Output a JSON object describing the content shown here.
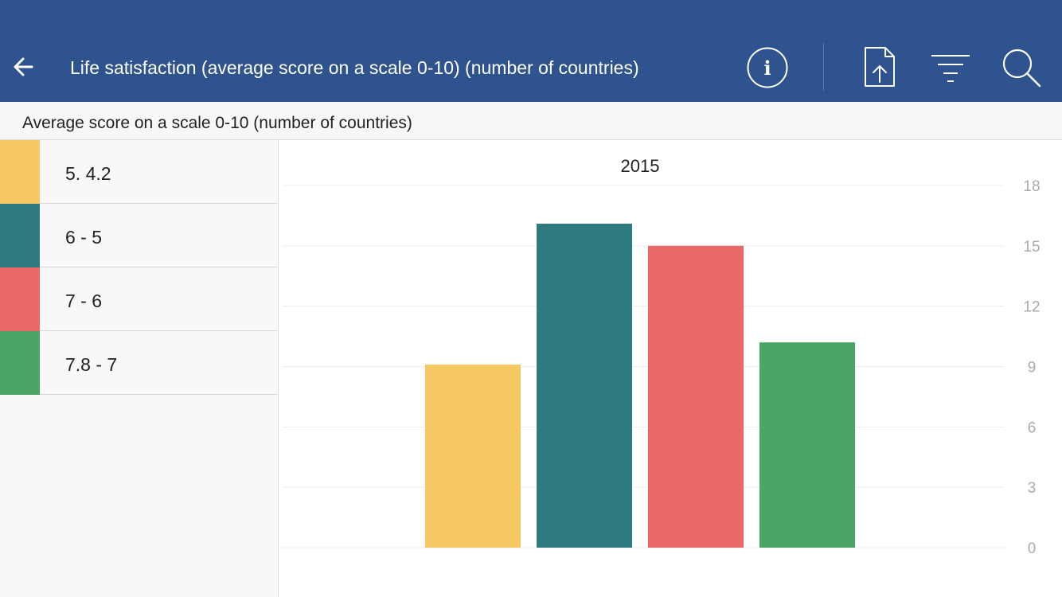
{
  "header": {
    "title": "Life satisfaction (average score on a scale 0-10) (number of countries)",
    "icons": {
      "back": "back-arrow-icon",
      "info": "info-icon",
      "export": "export-icon",
      "filter": "filter-icon",
      "search": "search-icon"
    },
    "background": "#2e538e"
  },
  "subheader": {
    "text": "Average score on a scale 0-10 (number of countries)"
  },
  "legend": {
    "items": [
      {
        "label": "5. 4.2",
        "color": "#f7c963"
      },
      {
        "label": "6 - 5",
        "color": "#2f7981"
      },
      {
        "label": "7 - 6",
        "color": "#e96868"
      },
      {
        "label": "7.8 - 7",
        "color": "#4aa666"
      }
    ]
  },
  "chart_data": {
    "type": "bar",
    "title": "2015",
    "categories": [
      "5. 4.2",
      "6 - 5",
      "7 - 6",
      "7.8 - 7"
    ],
    "values": [
      9.1,
      16.1,
      15.0,
      10.2
    ],
    "colors": [
      "#f7c963",
      "#2f7981",
      "#e96868",
      "#4aa666"
    ],
    "ylim": [
      0,
      18
    ],
    "yticks": [
      0,
      3,
      6,
      9,
      12,
      15,
      18
    ],
    "y_axis_position": "right",
    "grid": true
  }
}
